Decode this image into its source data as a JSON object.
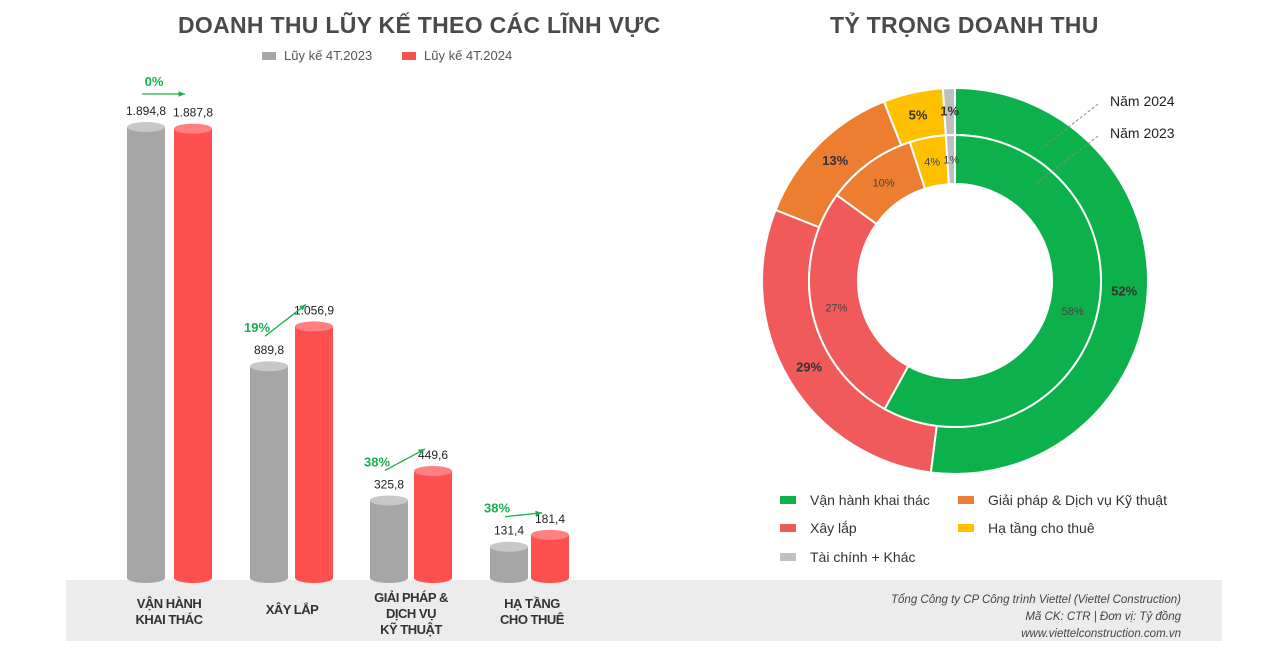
{
  "chart_data": [
    {
      "type": "bar",
      "title": "DOANH THU LŨY KẾ THEO CÁC LĨNH VỰC",
      "categories": [
        "VẬN HÀNH KHAI THÁC",
        "XÂY LẮP",
        "GIẢI PHÁP & DỊCH VỤ KỸ THUẬT",
        "HẠ TẦNG CHO THUÊ"
      ],
      "category_lines": [
        [
          "VẬN HÀNH",
          "KHAI THÁC"
        ],
        [
          "XÂY LẮP"
        ],
        [
          "GIẢI PHÁP &",
          "DỊCH VỤ",
          "KỸ THUẬT"
        ],
        [
          "HẠ TẦNG",
          "CHO THUÊ"
        ]
      ],
      "series": [
        {
          "name": "Lũy kế 4T.2023",
          "color": "#a6a6a6",
          "values": [
            1894.8,
            889.8,
            325.8,
            131.4
          ],
          "labels": [
            "1.894,8",
            "889,8",
            "325,8",
            "131,4"
          ]
        },
        {
          "name": "Lũy kế 4T.2024",
          "color": "#ff5050",
          "values": [
            1887.8,
            1056.9,
            449.6,
            181.4
          ],
          "labels": [
            "1.887,8",
            "1.056,9",
            "449,6",
            "181,4"
          ]
        }
      ],
      "growth_labels": [
        "0%",
        "19%",
        "38%",
        "38%"
      ],
      "legend": "top"
    },
    {
      "type": "pie",
      "subtype": "donut",
      "title": "TỶ TRỌNG DOANH THU",
      "categories": [
        "Vận hành khai thác",
        "Xây lắp",
        "Giải pháp & Dịch vụ Kỹ thuật",
        "Hạ tầng cho thuê",
        "Tài chính + Khác"
      ],
      "colors": [
        "#0db14b",
        "#f05a5a",
        "#ed7d31",
        "#ffc000",
        "#bfbfbf"
      ],
      "series": [
        {
          "name": "Năm 2024",
          "ring": "outer",
          "values": [
            52,
            29,
            13,
            5,
            1
          ]
        },
        {
          "name": "Năm 2023",
          "ring": "inner",
          "values": [
            58,
            27,
            10,
            4,
            1
          ]
        }
      ]
    }
  ],
  "footer": {
    "company": "Tổng Công ty CP Công trình Viettel (Viettel Construction)",
    "code": "Mã CK: CTR  |  Đơn vị: Tỷ đồng",
    "website": "www.viettelconstruction.com.vn"
  }
}
